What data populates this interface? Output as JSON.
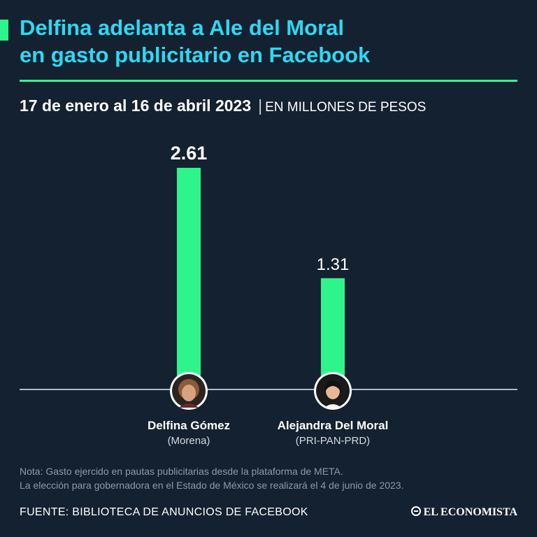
{
  "header": {
    "title_line1": "Delfina adelanta a Ale del Moral",
    "title_line2": "en gasto publicitario en Facebook",
    "date_range": "17 de enero al 16 de abril 2023",
    "separator": "|",
    "unit": "EN MILLONES DE PESOS"
  },
  "colors": {
    "background": "#142130",
    "bar": "#2ef58b",
    "title": "#2fd8f2",
    "axis": "#e6edf2"
  },
  "chart_data": {
    "type": "bar",
    "title": "Delfina adelanta a Ale del Moral en gasto publicitario en Facebook",
    "ylabel": "EN MILLONES DE PESOS",
    "categories": [
      "Delfina Gómez",
      "Alejandra Del Moral"
    ],
    "values": [
      2.61,
      1.31
    ],
    "value_labels": [
      "2.61",
      "1.31"
    ],
    "ylim": [
      0,
      2.61
    ],
    "grid": false
  },
  "candidates": [
    {
      "name": "Delfina Gómez",
      "party": "(Morena)"
    },
    {
      "name": "Alejandra Del Moral",
      "party": "(PRI-PAN-PRD)"
    }
  ],
  "footer": {
    "note_line1": "Nota: Gasto ejercido en pautas publicitarias desde la plataforma de META.",
    "note_line2": "La elección para gobernadora en el Estado de México se realizará el 4 de junio de 2023.",
    "source": "FUENTE: BIBLIOTECA DE ANUNCIOS DE FACEBOOK",
    "brand": "EL ECONOMISTA"
  }
}
